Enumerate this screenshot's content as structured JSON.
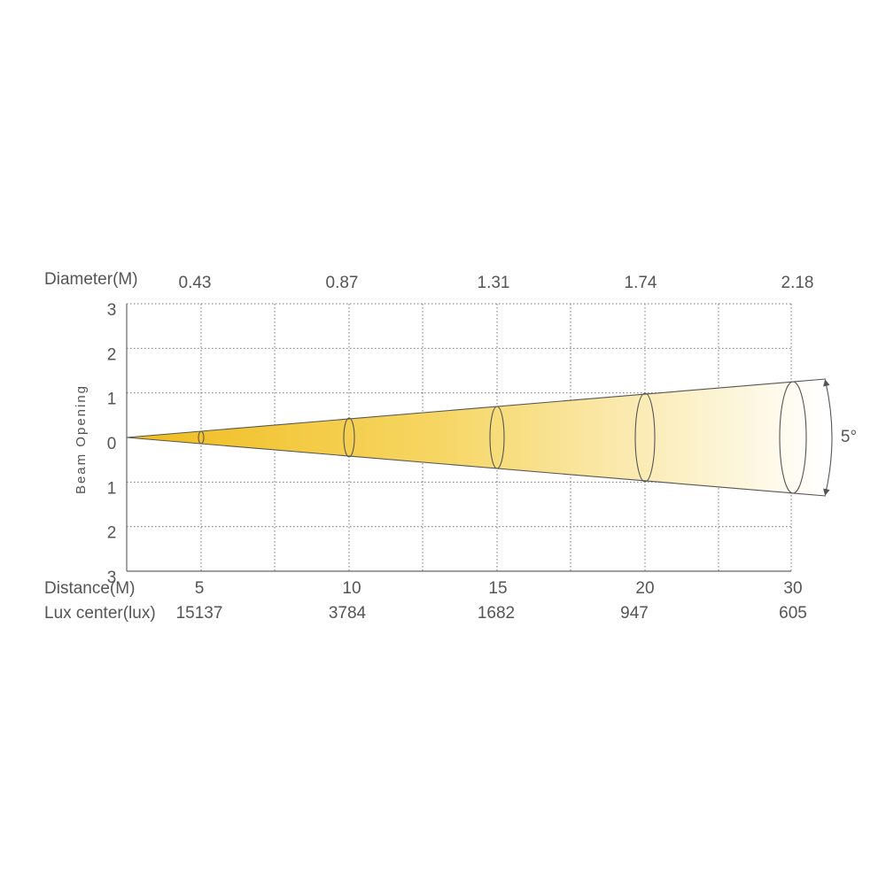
{
  "diameter_label": "Diameter(M)",
  "diameters": [
    "0.43",
    "0.87",
    "1.31",
    "1.74",
    "2.18"
  ],
  "y_axis_label": "Beam Opening",
  "y_labels": [
    "3",
    "2",
    "1",
    "0",
    "1",
    "2",
    "3"
  ],
  "distance_label": "Distance(M)",
  "distances": [
    "5",
    "10",
    "15",
    "20",
    "30"
  ],
  "lux_label": "Lux center(lux)",
  "lux": [
    "15137",
    "3784",
    "1682",
    "947",
    "605"
  ],
  "angle": "5°"
}
